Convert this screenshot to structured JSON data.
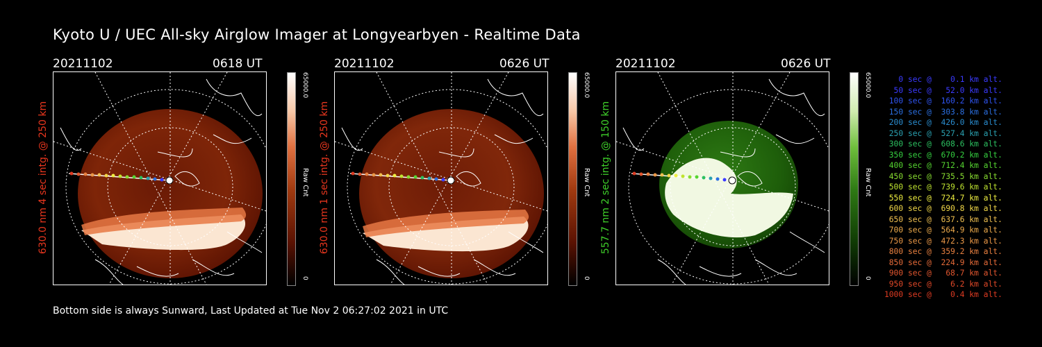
{
  "title": "Kyoto U / UEC All-sky Airglow Imager at Longyearbyen - Realtime Data",
  "footer": "Bottom side is always Sunward, Last Updated at Tue Nov  2 06:27:02 2021 in UTC",
  "panels": [
    {
      "date": "20211102",
      "time": "0618 UT",
      "label": "630.0 nm 4 sec intg. @ 250 km",
      "label_color": "#e8361e",
      "colorbar_max": "65000.0",
      "colorbar_title": "Raw Cnt",
      "colorbar_min": "0",
      "scheme": "red"
    },
    {
      "date": "20211102",
      "time": "0626 UT",
      "label": "630.0 nm 1 sec intg. @ 250 km",
      "label_color": "#e8361e",
      "colorbar_max": "65000.0",
      "colorbar_title": "Raw Cnt",
      "colorbar_min": "0",
      "scheme": "red"
    },
    {
      "date": "20211102",
      "time": "0626 UT",
      "label": "557.7 nm 2 sec intg. @ 150 km",
      "label_color": "#3fd02a",
      "colorbar_max": "65000.0",
      "colorbar_title": "Raw Cnt",
      "colorbar_min": "0",
      "scheme": "green"
    }
  ],
  "legend": [
    {
      "text": "   0 sec @    0.1 km alt.",
      "color": "#3b3bff"
    },
    {
      "text": "  50 sec @   52.0 km alt.",
      "color": "#3b3bff"
    },
    {
      "text": " 100 sec @  160.2 km alt.",
      "color": "#2f54f0"
    },
    {
      "text": " 150 sec @  303.8 km alt.",
      "color": "#2b6fe0"
    },
    {
      "text": " 200 sec @  426.0 km alt.",
      "color": "#2a8dd0"
    },
    {
      "text": " 250 sec @  527.4 km alt.",
      "color": "#2aa0b0"
    },
    {
      "text": " 300 sec @  608.6 km alt.",
      "color": "#2cc060"
    },
    {
      "text": " 350 sec @  670.2 km alt.",
      "color": "#35d040"
    },
    {
      "text": " 400 sec @  712.4 km alt.",
      "color": "#55d530"
    },
    {
      "text": " 450 sec @  735.5 km alt.",
      "color": "#88dd30"
    },
    {
      "text": " 500 sec @  739.6 km alt.",
      "color": "#bfe430"
    },
    {
      "text": " 550 sec @  724.7 km alt.",
      "color": "#eeee40"
    },
    {
      "text": " 600 sec @  690.8 km alt.",
      "color": "#f2d848"
    },
    {
      "text": " 650 sec @  637.6 km alt.",
      "color": "#f0c050"
    },
    {
      "text": " 700 sec @  564.9 km alt.",
      "color": "#eeab4c"
    },
    {
      "text": " 750 sec @  472.3 km alt.",
      "color": "#eb9847"
    },
    {
      "text": " 800 sec @  359.2 km alt.",
      "color": "#e88040"
    },
    {
      "text": " 850 sec @  224.9 km alt.",
      "color": "#e56a38"
    },
    {
      "text": " 900 sec @   68.7 km alt.",
      "color": "#e2562f"
    },
    {
      "text": " 950 sec @    6.2 km alt.",
      "color": "#e04828"
    },
    {
      "text": "1000 sec @    0.4 km alt.",
      "color": "#de3b22"
    }
  ]
}
